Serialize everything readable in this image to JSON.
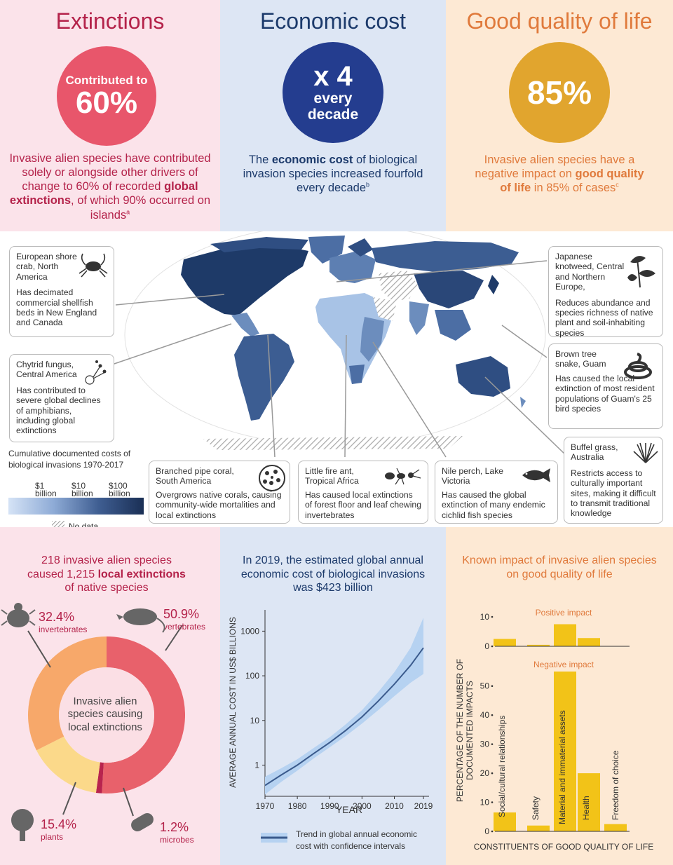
{
  "top": {
    "extinctions": {
      "title": "Extinctions",
      "circle_line1": "Contributed to",
      "circle_line2": "60%",
      "p1": "Invasive alien species have contributed solely or alongside other drivers of change to 60% of recorded ",
      "p_bold": "global extinctions",
      "p2": ", of which 90% occurred on islands",
      "sup": "a"
    },
    "economic": {
      "title": "Economic cost",
      "circle_line1": "x 4",
      "circle_line2": "every",
      "circle_line3": "decade",
      "p1": "The ",
      "p_bold": "economic cost",
      "p2": " of biological invasion species increased fourfold every decade",
      "sup": "b"
    },
    "quality": {
      "title": "Good quality of life",
      "circle_line1": "85%",
      "p1": "Invasive alien species have a negative impact on ",
      "p_bold": "good quality of life",
      "p2": " in 85% of cases",
      "sup": "c"
    }
  },
  "map": {
    "legend_title": "Cumulative documented costs of biological invasions 1970-2017",
    "legend_ticks": [
      "$1 billion",
      "$10 billion",
      "$100 billion"
    ],
    "no_data": "No data",
    "callouts": {
      "crab": {
        "title": "European shore crab, North America",
        "body": "Has decimated commercial shellfish beds in New England and Canada"
      },
      "chytrid": {
        "title": "Chytrid fungus, Central America",
        "body": "Has contributed to severe global declines of amphibians, including global extinctions"
      },
      "coral": {
        "title": "Branched pipe coral, South America",
        "body": "Overgrows native corals, causing community-wide mortalities and local extinctions"
      },
      "ant": {
        "title": "Little fire ant, Tropical Africa",
        "body": "Has caused local extinctions of forest floor and leaf chewing invertebrates"
      },
      "perch": {
        "title": "Nile perch, Lake Victoria",
        "body": "Has caused the global extinction of many endemic cichlid fish species"
      },
      "knotweed": {
        "title": "Japanese knotweed, Central and Northern Europe,",
        "body": "Reduces abundance and species richness of native plant and soil-inhabiting species"
      },
      "snake": {
        "title": "Brown tree snake, Guam",
        "body": "Has caused the local extinction of most resident populations of Guam's 25 bird species"
      },
      "buffel": {
        "title": "Buffel grass, Australia",
        "body": "Restricts access to culturally important sites, making it difficult to transmit traditional knowledge"
      }
    }
  },
  "donut": {
    "title1": "218 invasive alien species",
    "title2a": "caused 1,215 ",
    "title2b": "local extinctions",
    "title3": "of native species",
    "center": "Invasive alien species causing local extinctions",
    "segments": [
      {
        "name": "vertebrates",
        "value": 50.9,
        "label": "50.9%",
        "color": "#e8616b"
      },
      {
        "name": "microbes",
        "value": 1.2,
        "label": "1.2%",
        "color": "#b8244e"
      },
      {
        "name": "plants",
        "value": 15.4,
        "label": "15.4%",
        "color": "#fbd98a"
      },
      {
        "name": "invertebrates",
        "value": 32.4,
        "label": "32.4%",
        "color": "#f7a86a"
      }
    ]
  },
  "chart_data": [
    {
      "type": "line",
      "title": "In 2019, the estimated global annual economic cost of biological invasions was $423 billion",
      "xlabel": "YEAR",
      "ylabel": "AVERAGE ANNUAL COST IN US$ BILLIONS",
      "x_ticks": [
        "1970",
        "1980",
        "1990",
        "2000",
        "2010",
        "2019"
      ],
      "y_ticks": [
        "1",
        "10",
        "100",
        "1000"
      ],
      "y_scale": "log",
      "series": [
        {
          "name": "Trend in global annual economic cost with confidence intervals",
          "x": [
            1970,
            1975,
            1980,
            1985,
            1990,
            1995,
            2000,
            2005,
            2010,
            2015,
            2019
          ],
          "y": [
            0.35,
            0.6,
            1.0,
            1.8,
            3.2,
            6.0,
            12,
            27,
            65,
            170,
            423
          ],
          "lower": [
            0.22,
            0.42,
            0.75,
            1.4,
            2.5,
            4.5,
            8.5,
            17,
            35,
            70,
            110
          ],
          "upper": [
            0.55,
            0.85,
            1.35,
            2.4,
            4.2,
            8.2,
            17,
            43,
            120,
            420,
            2000
          ]
        }
      ],
      "legend_text": "Trend in global annual economic cost with confidence intervals"
    },
    {
      "type": "bar",
      "title": "Known impact of invasive alien species on good quality of life",
      "xlabel": "CONSTITUENTS OF GOOD QUALITY OF LIFE",
      "ylabel": "PERCENTAGE OF THE NUMBER OF DOCUMENTED IMPACTS",
      "categories": [
        "Social/cultural relationships",
        "Safety",
        "Material and immaterial assets",
        "Health",
        "Freedom of choice"
      ],
      "positive": {
        "name": "Positive impact",
        "values": [
          2.5,
          0.5,
          7.5,
          2.8,
          0
        ],
        "y_ticks": [
          "0",
          "10"
        ],
        "ylim": [
          0,
          10
        ]
      },
      "negative": {
        "name": "Negative impact",
        "values": [
          6.5,
          2,
          55,
          20,
          2.5
        ],
        "y_ticks": [
          "0",
          "10",
          "20",
          "30",
          "40",
          "50"
        ],
        "ylim": [
          0,
          55
        ]
      }
    }
  ],
  "colors": {
    "red": "#b4224a",
    "blue": "#1c3a6b",
    "orange": "#e07a3c",
    "gold": "#f2c318"
  }
}
